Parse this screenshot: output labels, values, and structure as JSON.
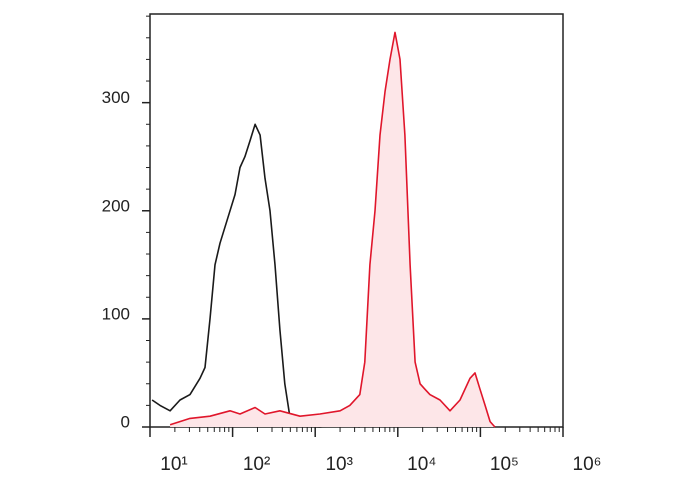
{
  "chart_data": {
    "type": "line",
    "log_x": true,
    "xlim": [
      10,
      1000000
    ],
    "xticks": [
      {
        "value": 10,
        "label": "10¹"
      },
      {
        "value": 100,
        "label": "10²"
      },
      {
        "value": 1000,
        "label": "10³"
      },
      {
        "value": 10000,
        "label": "10⁴"
      },
      {
        "value": 100000,
        "label": "10⁵"
      },
      {
        "value": 1000000,
        "label": "10⁶"
      }
    ],
    "xminor": [
      2,
      3,
      4,
      5,
      6,
      7,
      8,
      9
    ],
    "ylim": [
      0,
      382
    ],
    "yticks": [
      0,
      100,
      200,
      300
    ],
    "yminorticks": [
      20,
      40,
      60,
      80,
      120,
      140,
      160,
      180,
      220,
      240,
      260,
      280,
      320,
      340,
      360,
      380
    ],
    "series": [
      {
        "color": "#1a1a1a",
        "fill": null,
        "x": [
          10.6,
          13.2,
          17.5,
          23.1,
          30.5,
          40.3,
          46.3,
          53.2,
          61.2,
          70.4,
          93,
          107,
          123,
          141,
          163,
          187,
          215,
          247,
          284,
          326,
          374,
          429,
          493,
          568,
          654,
          1140,
          2000,
          3470
        ],
        "values": [
          25,
          20,
          15,
          25,
          30,
          45,
          55,
          100,
          150,
          170,
          200,
          215,
          240,
          250,
          265,
          280,
          270,
          230,
          200,
          150,
          90,
          40,
          10,
          3,
          1,
          0,
          2,
          0
        ]
      },
      {
        "color": "#e0162b",
        "fill": "#fde6e8",
        "x": [
          17.5,
          30.5,
          53.2,
          93,
          123,
          187,
          247,
          374,
          654,
          1140,
          2000,
          2620,
          3470,
          3980,
          4600,
          5300,
          6080,
          7000,
          8050,
          9250,
          10640,
          12200,
          14100,
          16200,
          18600,
          21300,
          24500,
          32400,
          42800,
          56600,
          74800,
          86000,
          98900,
          114000,
          131000,
          150000
        ],
        "values": [
          2,
          8,
          10,
          15,
          12,
          18,
          12,
          15,
          10,
          12,
          15,
          20,
          30,
          60,
          150,
          200,
          270,
          310,
          340,
          365,
          340,
          270,
          150,
          60,
          40,
          35,
          30,
          25,
          15,
          25,
          45,
          50,
          35,
          20,
          5,
          0
        ]
      }
    ]
  }
}
